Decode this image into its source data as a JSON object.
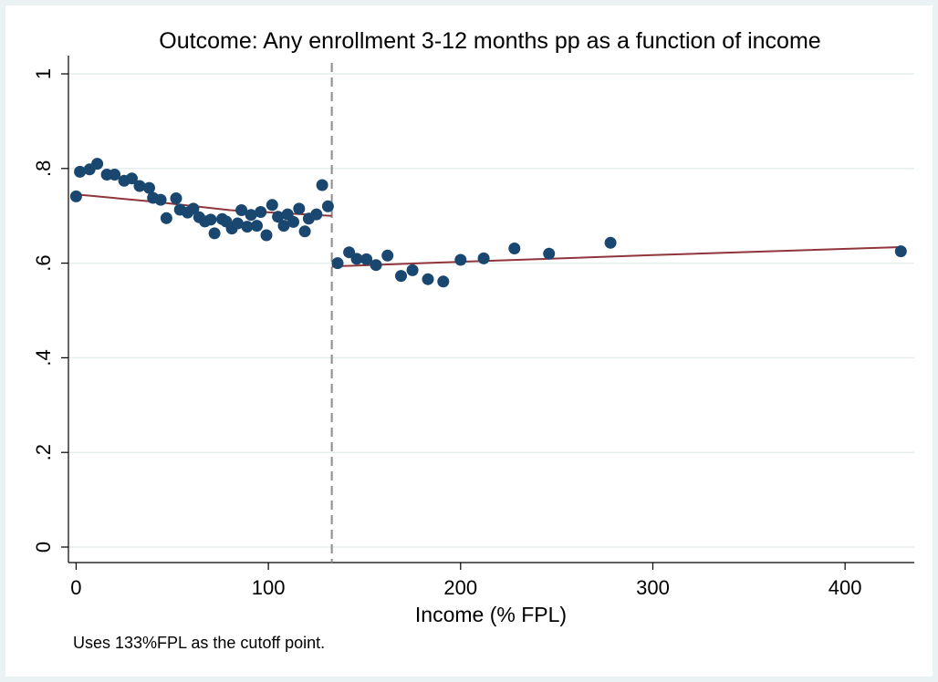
{
  "chart_data": {
    "type": "scatter",
    "title": "Outcome: Any enrollment 3-12 months pp as a function of income",
    "xlabel": "Income (% FPL)",
    "ylabel": "",
    "note": "Uses 133%FPL as the cutoff point.",
    "xlim": [
      -4,
      436
    ],
    "ylim": [
      0,
      1
    ],
    "x_ticks": [
      0,
      100,
      200,
      300,
      400
    ],
    "x_tick_labels": [
      "0",
      "100",
      "200",
      "300",
      "400"
    ],
    "y_ticks": [
      0,
      0.2,
      0.4,
      0.6,
      0.8,
      1
    ],
    "y_tick_labels": [
      "0",
      ".2",
      ".4",
      ".6",
      ".8",
      "1"
    ],
    "grid": true,
    "cutoff": 133,
    "marker_color": "#1a476f",
    "fit_color": "#90353b",
    "cutoff_color": "#8c8c8c",
    "series": [
      {
        "type": "scatter",
        "points": [
          [
            0,
            0.741
          ],
          [
            2,
            0.793
          ],
          [
            7,
            0.798
          ],
          [
            11,
            0.81
          ],
          [
            16,
            0.787
          ],
          [
            20,
            0.787
          ],
          [
            25,
            0.774
          ],
          [
            29,
            0.779
          ],
          [
            33,
            0.763
          ],
          [
            38,
            0.759
          ],
          [
            40,
            0.738
          ],
          [
            44,
            0.734
          ],
          [
            47,
            0.695
          ],
          [
            52,
            0.737
          ],
          [
            54,
            0.713
          ],
          [
            58,
            0.707
          ],
          [
            61,
            0.715
          ],
          [
            64,
            0.697
          ],
          [
            67,
            0.688
          ],
          [
            70,
            0.692
          ],
          [
            72,
            0.663
          ],
          [
            76,
            0.693
          ],
          [
            78,
            0.688
          ],
          [
            81,
            0.673
          ],
          [
            84,
            0.684
          ],
          [
            86,
            0.712
          ],
          [
            89,
            0.677
          ],
          [
            91,
            0.702
          ],
          [
            94,
            0.679
          ],
          [
            96,
            0.708
          ],
          [
            99,
            0.659
          ],
          [
            102,
            0.723
          ],
          [
            105,
            0.698
          ],
          [
            108,
            0.679
          ],
          [
            110,
            0.703
          ],
          [
            113,
            0.687
          ],
          [
            116,
            0.715
          ],
          [
            119,
            0.667
          ],
          [
            121,
            0.694
          ],
          [
            125,
            0.703
          ],
          [
            128,
            0.765
          ],
          [
            131,
            0.72
          ],
          [
            136,
            0.6
          ],
          [
            142,
            0.623
          ],
          [
            146,
            0.609
          ],
          [
            151,
            0.608
          ],
          [
            156,
            0.596
          ],
          [
            162,
            0.616
          ],
          [
            169,
            0.573
          ],
          [
            175,
            0.585
          ],
          [
            183,
            0.566
          ],
          [
            191,
            0.561
          ],
          [
            200,
            0.607
          ],
          [
            212,
            0.61
          ],
          [
            228,
            0.631
          ],
          [
            246,
            0.62
          ],
          [
            278,
            0.643
          ],
          [
            429,
            0.625
          ]
        ]
      },
      {
        "type": "line",
        "points": [
          [
            0,
            0.745
          ],
          [
            40,
            0.73
          ],
          [
            80,
            0.712
          ],
          [
            133,
            0.7
          ]
        ]
      },
      {
        "type": "line",
        "points": [
          [
            133,
            0.593
          ],
          [
            180,
            0.6
          ],
          [
            300,
            0.617
          ],
          [
            429,
            0.634
          ]
        ]
      }
    ]
  }
}
